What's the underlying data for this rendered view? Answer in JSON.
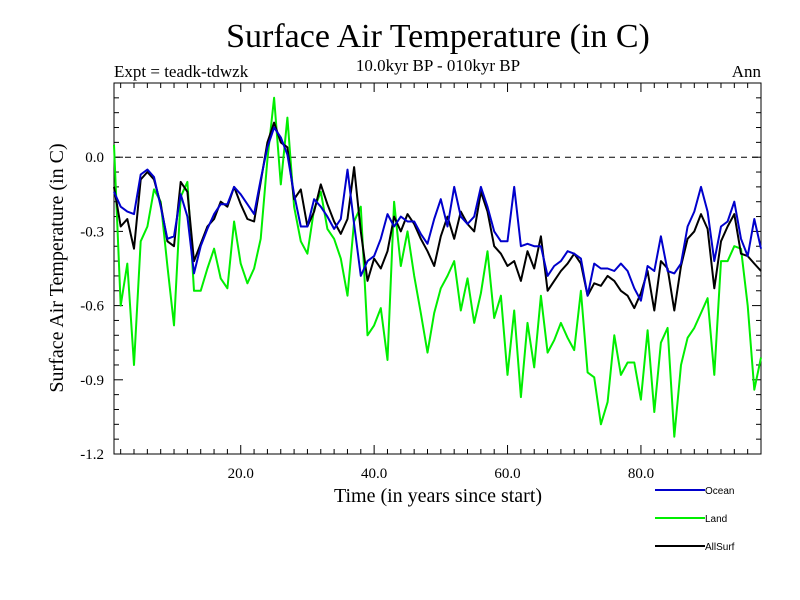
{
  "chart_data": {
    "type": "line",
    "title": "Surface Air Temperature (in C)",
    "subtitle": "10.0kyr BP - 010kyr BP",
    "left_label": "Expt = teadk-tdwzk",
    "right_label": "Ann",
    "xlabel": "Time (in years since start)",
    "ylabel": "Surface Air Temperature (in C)",
    "xlim": [
      1,
      98
    ],
    "ylim": [
      -1.2,
      0.3
    ],
    "xticks": [
      20,
      40,
      60,
      80
    ],
    "xtick_labels": [
      "20.0",
      "40.0",
      "60.0",
      "80.0"
    ],
    "yticks": [
      0.0,
      -0.3,
      -0.6,
      -0.9,
      -1.2
    ],
    "ytick_labels": [
      "0.0",
      "-0.3",
      "-0.6",
      "-0.9",
      "-1.2"
    ],
    "reference_line": 0.0,
    "x": [
      1,
      2,
      3,
      4,
      5,
      6,
      7,
      8,
      9,
      10,
      11,
      12,
      13,
      14,
      15,
      16,
      17,
      18,
      19,
      20,
      21,
      22,
      23,
      24,
      25,
      26,
      27,
      28,
      29,
      30,
      31,
      32,
      33,
      34,
      35,
      36,
      37,
      38,
      39,
      40,
      41,
      42,
      43,
      44,
      45,
      46,
      47,
      48,
      49,
      50,
      51,
      52,
      53,
      54,
      55,
      56,
      57,
      58,
      59,
      60,
      61,
      62,
      63,
      64,
      65,
      66,
      67,
      68,
      69,
      70,
      71,
      72,
      73,
      74,
      75,
      76,
      77,
      78,
      79,
      80,
      81,
      82,
      83,
      84,
      85,
      86,
      87,
      88,
      89,
      90,
      91,
      92,
      93,
      94,
      95,
      96,
      97,
      98
    ],
    "series": [
      {
        "name": "Ocean",
        "color": "#0000cc",
        "values": [
          -0.14,
          -0.2,
          -0.22,
          -0.23,
          -0.07,
          -0.05,
          -0.08,
          -0.2,
          -0.33,
          -0.32,
          -0.15,
          -0.24,
          -0.47,
          -0.36,
          -0.29,
          -0.23,
          -0.19,
          -0.19,
          -0.12,
          -0.15,
          -0.19,
          -0.23,
          -0.09,
          0.04,
          0.12,
          0.08,
          0.01,
          -0.15,
          -0.28,
          -0.28,
          -0.17,
          -0.2,
          -0.24,
          -0.29,
          -0.25,
          -0.05,
          -0.27,
          -0.48,
          -0.42,
          -0.4,
          -0.33,
          -0.23,
          -0.28,
          -0.24,
          -0.26,
          -0.26,
          -0.31,
          -0.35,
          -0.25,
          -0.17,
          -0.28,
          -0.12,
          -0.24,
          -0.27,
          -0.24,
          -0.12,
          -0.2,
          -0.3,
          -0.34,
          -0.34,
          -0.12,
          -0.36,
          -0.35,
          -0.36,
          -0.36,
          -0.48,
          -0.44,
          -0.42,
          -0.38,
          -0.39,
          -0.41,
          -0.56,
          -0.43,
          -0.45,
          -0.45,
          -0.46,
          -0.43,
          -0.46,
          -0.53,
          -0.58,
          -0.44,
          -0.46,
          -0.32,
          -0.46,
          -0.47,
          -0.43,
          -0.28,
          -0.22,
          -0.12,
          -0.22,
          -0.42,
          -0.28,
          -0.26,
          -0.18,
          -0.33,
          -0.4,
          -0.25,
          -0.37
        ]
      },
      {
        "name": "Land",
        "color": "#00ee00",
        "values": [
          0.05,
          -0.6,
          -0.43,
          -0.84,
          -0.34,
          -0.28,
          -0.13,
          -0.18,
          -0.44,
          -0.68,
          -0.16,
          -0.1,
          -0.54,
          -0.54,
          -0.45,
          -0.37,
          -0.49,
          -0.53,
          -0.26,
          -0.43,
          -0.51,
          -0.45,
          -0.33,
          -0.01,
          0.24,
          -0.11,
          0.16,
          -0.2,
          -0.34,
          -0.39,
          -0.21,
          -0.14,
          -0.29,
          -0.33,
          -0.41,
          -0.56,
          -0.26,
          -0.2,
          -0.72,
          -0.68,
          -0.61,
          -0.82,
          -0.18,
          -0.44,
          -0.3,
          -0.48,
          -0.63,
          -0.79,
          -0.63,
          -0.53,
          -0.48,
          -0.42,
          -0.62,
          -0.49,
          -0.67,
          -0.55,
          -0.38,
          -0.65,
          -0.56,
          -0.88,
          -0.62,
          -0.97,
          -0.67,
          -0.85,
          -0.56,
          -0.79,
          -0.74,
          -0.67,
          -0.73,
          -0.78,
          -0.54,
          -0.87,
          -0.89,
          -1.08,
          -0.99,
          -0.72,
          -0.88,
          -0.83,
          -0.83,
          -0.98,
          -0.7,
          -1.03,
          -0.75,
          -0.69,
          -1.13,
          -0.84,
          -0.73,
          -0.69,
          -0.63,
          -0.57,
          -0.88,
          -0.42,
          -0.42,
          -0.36,
          -0.37,
          -0.6,
          -0.94,
          -0.81
        ]
      },
      {
        "name": "AllSurf",
        "color": "#000000",
        "values": [
          -0.12,
          -0.28,
          -0.25,
          -0.37,
          -0.09,
          -0.06,
          -0.09,
          -0.19,
          -0.34,
          -0.36,
          -0.1,
          -0.14,
          -0.42,
          -0.35,
          -0.28,
          -0.25,
          -0.18,
          -0.2,
          -0.12,
          -0.19,
          -0.25,
          -0.26,
          -0.1,
          0.06,
          0.14,
          0.06,
          0.04,
          -0.17,
          -0.13,
          -0.28,
          -0.22,
          -0.11,
          -0.19,
          -0.26,
          -0.31,
          -0.25,
          -0.04,
          -0.3,
          -0.5,
          -0.41,
          -0.45,
          -0.38,
          -0.24,
          -0.3,
          -0.23,
          -0.27,
          -0.33,
          -0.38,
          -0.44,
          -0.32,
          -0.24,
          -0.33,
          -0.22,
          -0.27,
          -0.3,
          -0.14,
          -0.22,
          -0.36,
          -0.39,
          -0.44,
          -0.42,
          -0.5,
          -0.38,
          -0.45,
          -0.32,
          -0.54,
          -0.5,
          -0.46,
          -0.43,
          -0.39,
          -0.43,
          -0.56,
          -0.51,
          -0.52,
          -0.48,
          -0.5,
          -0.54,
          -0.56,
          -0.61,
          -0.55,
          -0.46,
          -0.62,
          -0.42,
          -0.45,
          -0.62,
          -0.44,
          -0.33,
          -0.3,
          -0.23,
          -0.29,
          -0.53,
          -0.34,
          -0.28,
          -0.23,
          -0.39,
          -0.4,
          -0.43,
          -0.46
        ]
      }
    ],
    "legend": {
      "placement": "bottom-right",
      "entries": [
        "Ocean",
        "Land",
        "AllSurf"
      ]
    }
  }
}
